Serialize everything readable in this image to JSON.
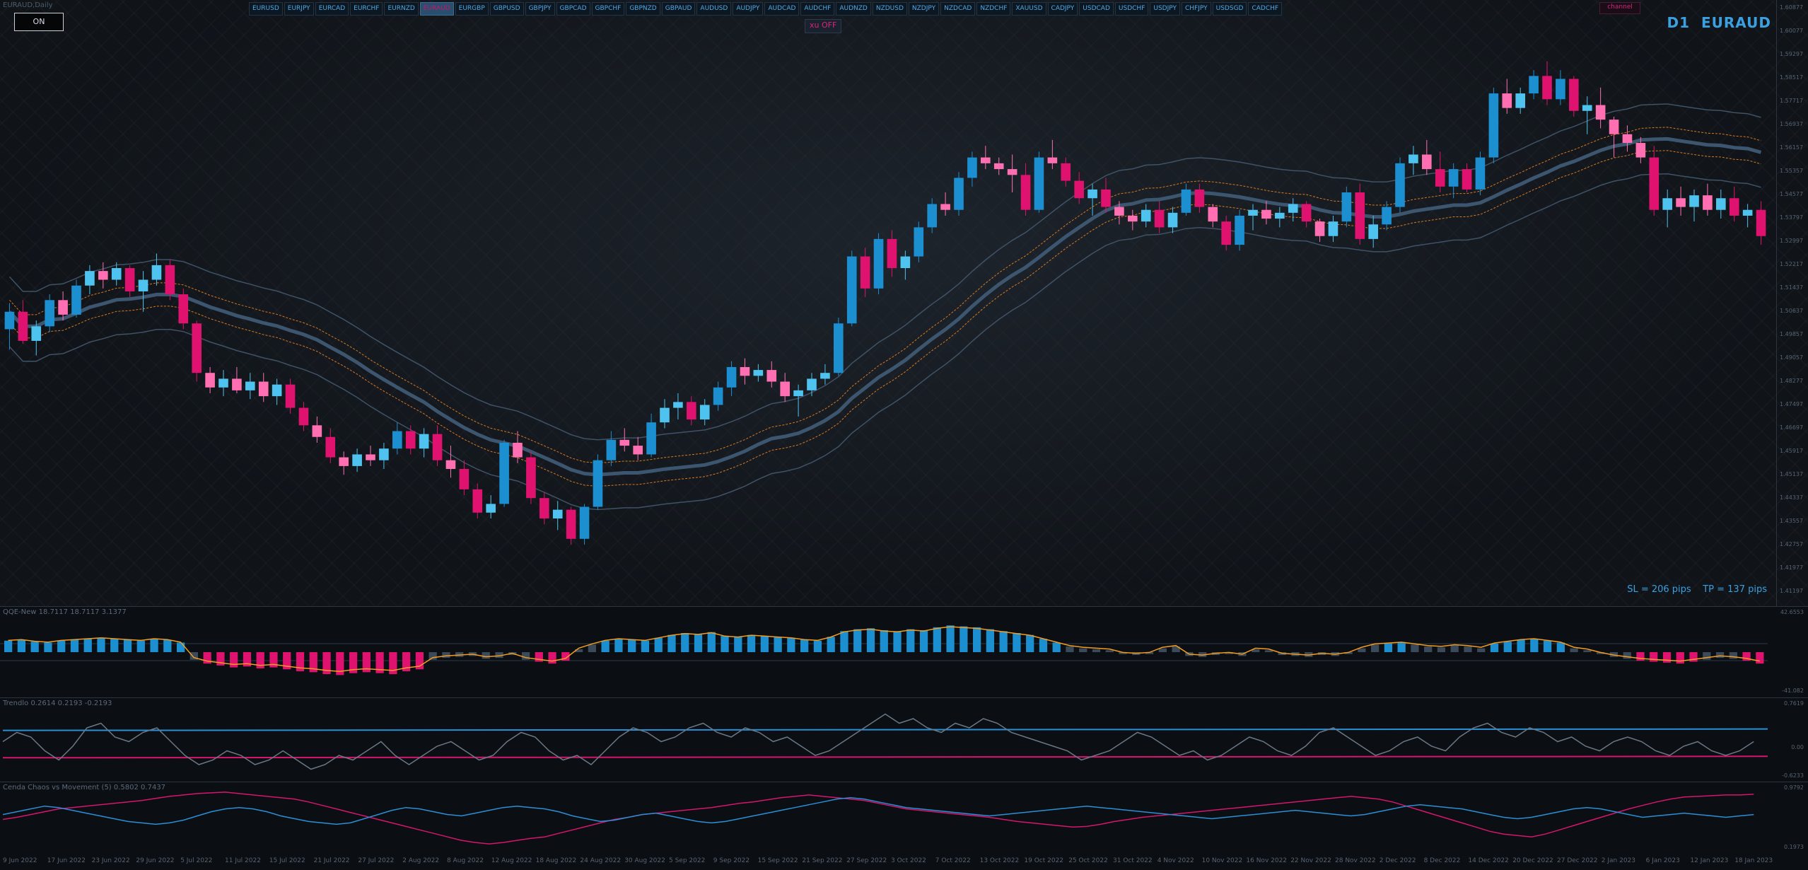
{
  "window": {
    "title": "EURAUD,Daily",
    "timeframe": "D1",
    "symbol": "EURAUD"
  },
  "controls": {
    "on_button": "ON",
    "xu_button": "xu OFF",
    "channel_button": "channel"
  },
  "symbols": [
    "EURUSD",
    "EURJPY",
    "EURCAD",
    "EURCHF",
    "EURNZD",
    "EURAUD",
    "EURGBP",
    "GBPUSD",
    "GBPJPY",
    "GBPCAD",
    "GBPCHF",
    "GBPNZD",
    "GBPAUD",
    "AUDUSD",
    "AUDJPY",
    "AUDCAD",
    "AUDCHF",
    "AUDNZD",
    "NZDUSD",
    "NZDJPY",
    "NZDCAD",
    "NZDCHF",
    "XAUUSD",
    "CADJPY",
    "USDCAD",
    "USDCHF",
    "USDJPY",
    "CHFJPY",
    "USDSGD",
    "CADCHF"
  ],
  "active_symbol": "EURAUD",
  "sl_tp": "SL = 206 pips    TP = 137 pips",
  "price_axis": [
    "1.60877",
    "1.60077",
    "1.59297",
    "1.58517",
    "1.57717",
    "1.56937",
    "1.56157",
    "1.55357",
    "1.54577",
    "1.53797",
    "1.52997",
    "1.52217",
    "1.51437",
    "1.50637",
    "1.49857",
    "1.49057",
    "1.48277",
    "1.47497",
    "1.46697",
    "1.45917",
    "1.45137",
    "1.44337",
    "1.43557",
    "1.42757",
    "1.41977",
    "1.41197"
  ],
  "indicators": {
    "qqe": {
      "title": "QQE-New 18.7117 18.7117 3.1377",
      "max": "42.6553",
      "min": "-41.082"
    },
    "trendlo": {
      "title": "Trendlo 0.2614 0.2193 -0.2193",
      "max": "0.7619",
      "mid": "0.00",
      "min": "-0.6233"
    },
    "chaos": {
      "title": "Cenda Chaos vs Movement (5) 0.5802 0.7437",
      "max": "0.9792",
      "min": "0.1973"
    }
  },
  "dates": [
    "9 Jun 2022",
    "17 Jun 2022",
    "23 Jun 2022",
    "29 Jun 2022",
    "5 Jul 2022",
    "11 Jul 2022",
    "15 Jul 2022",
    "21 Jul 2022",
    "27 Jul 2022",
    "2 Aug 2022",
    "8 Aug 2022",
    "12 Aug 2022",
    "18 Aug 2022",
    "24 Aug 2022",
    "30 Aug 2022",
    "5 Sep 2022",
    "9 Sep 2022",
    "15 Sep 2022",
    "21 Sep 2022",
    "27 Sep 2022",
    "3 Oct 2022",
    "7 Oct 2022",
    "13 Oct 2022",
    "19 Oct 2022",
    "25 Oct 2022",
    "31 Oct 2022",
    "4 Nov 2022",
    "10 Nov 2022",
    "16 Nov 2022",
    "22 Nov 2022",
    "28 Nov 2022",
    "2 Dec 2022",
    "8 Dec 2022",
    "14 Dec 2022",
    "20 Dec 2022",
    "27 Dec 2022",
    "2 Jan 2023",
    "6 Jan 2023",
    "12 Jan 2023",
    "18 Jan 2023"
  ],
  "colors": {
    "bull": "#4fc3ef",
    "bull_dark": "#1c8fd0",
    "bear": "#ff6fb2",
    "bear_dark": "#e0126f",
    "neutral": "#3a4a5a",
    "band_mid": "#3d5670",
    "band_outer": "#3f5266",
    "band_inner": "#d9781f",
    "dotted": "#c01a5a"
  },
  "chart_data": {
    "type": "candlestick",
    "price_range": [
      1.412,
      1.6088
    ],
    "candles": [
      [
        1.503,
        1.512,
        1.496,
        1.509
      ],
      [
        1.509,
        1.513,
        1.498,
        1.499
      ],
      [
        1.499,
        1.506,
        1.494,
        1.504
      ],
      [
        1.504,
        1.515,
        1.502,
        1.513
      ],
      [
        1.513,
        1.516,
        1.506,
        1.508
      ],
      [
        1.508,
        1.52,
        1.507,
        1.518
      ],
      [
        1.518,
        1.525,
        1.515,
        1.523
      ],
      [
        1.523,
        1.526,
        1.517,
        1.52
      ],
      [
        1.52,
        1.526,
        1.518,
        1.524
      ],
      [
        1.524,
        1.525,
        1.514,
        1.516
      ],
      [
        1.516,
        1.523,
        1.509,
        1.52
      ],
      [
        1.52,
        1.529,
        1.518,
        1.525
      ],
      [
        1.525,
        1.527,
        1.513,
        1.515
      ],
      [
        1.515,
        1.517,
        1.503,
        1.505
      ],
      [
        1.505,
        1.506,
        1.485,
        1.488
      ],
      [
        1.488,
        1.49,
        1.481,
        1.483
      ],
      [
        1.483,
        1.489,
        1.48,
        1.486
      ],
      [
        1.486,
        1.49,
        1.481,
        1.482
      ],
      [
        1.482,
        1.488,
        1.479,
        1.485
      ],
      [
        1.485,
        1.488,
        1.478,
        1.48
      ],
      [
        1.48,
        1.486,
        1.477,
        1.484
      ],
      [
        1.484,
        1.486,
        1.474,
        1.476
      ],
      [
        1.476,
        1.478,
        1.468,
        1.47
      ],
      [
        1.47,
        1.473,
        1.464,
        1.466
      ],
      [
        1.466,
        1.469,
        1.457,
        1.459
      ],
      [
        1.459,
        1.461,
        1.453,
        1.456
      ],
      [
        1.456,
        1.462,
        1.454,
        1.46
      ],
      [
        1.46,
        1.463,
        1.456,
        1.458
      ],
      [
        1.458,
        1.464,
        1.455,
        1.462
      ],
      [
        1.462,
        1.471,
        1.46,
        1.468
      ],
      [
        1.468,
        1.47,
        1.46,
        1.462
      ],
      [
        1.462,
        1.469,
        1.459,
        1.467
      ],
      [
        1.467,
        1.47,
        1.456,
        1.458
      ],
      [
        1.458,
        1.463,
        1.452,
        1.455
      ],
      [
        1.455,
        1.458,
        1.446,
        1.448
      ],
      [
        1.448,
        1.45,
        1.438,
        1.44
      ],
      [
        1.44,
        1.446,
        1.438,
        1.443
      ],
      [
        1.443,
        1.465,
        1.442,
        1.464
      ],
      [
        1.464,
        1.468,
        1.457,
        1.459
      ],
      [
        1.459,
        1.461,
        1.443,
        1.445
      ],
      [
        1.445,
        1.447,
        1.436,
        1.438
      ],
      [
        1.438,
        1.444,
        1.434,
        1.441
      ],
      [
        1.441,
        1.442,
        1.429,
        1.431
      ],
      [
        1.431,
        1.443,
        1.429,
        1.442
      ],
      [
        1.442,
        1.46,
        1.441,
        1.458
      ],
      [
        1.458,
        1.468,
        1.456,
        1.465
      ],
      [
        1.465,
        1.469,
        1.461,
        1.463
      ],
      [
        1.463,
        1.466,
        1.458,
        1.46
      ],
      [
        1.46,
        1.474,
        1.459,
        1.471
      ],
      [
        1.471,
        1.479,
        1.469,
        1.476
      ],
      [
        1.476,
        1.481,
        1.472,
        1.478
      ],
      [
        1.478,
        1.48,
        1.47,
        1.472
      ],
      [
        1.472,
        1.479,
        1.47,
        1.477
      ],
      [
        1.477,
        1.485,
        1.475,
        1.483
      ],
      [
        1.483,
        1.492,
        1.48,
        1.49
      ],
      [
        1.49,
        1.493,
        1.484,
        1.487
      ],
      [
        1.487,
        1.491,
        1.485,
        1.489
      ],
      [
        1.489,
        1.492,
        1.483,
        1.485
      ],
      [
        1.485,
        1.488,
        1.478,
        1.48
      ],
      [
        1.48,
        1.484,
        1.473,
        1.482
      ],
      [
        1.482,
        1.488,
        1.48,
        1.486
      ],
      [
        1.486,
        1.491,
        1.484,
        1.488
      ],
      [
        1.488,
        1.507,
        1.487,
        1.505
      ],
      [
        1.505,
        1.53,
        1.504,
        1.528
      ],
      [
        1.528,
        1.531,
        1.514,
        1.517
      ],
      [
        1.517,
        1.536,
        1.515,
        1.534
      ],
      [
        1.534,
        1.537,
        1.521,
        1.524
      ],
      [
        1.524,
        1.53,
        1.52,
        1.528
      ],
      [
        1.528,
        1.54,
        1.526,
        1.538
      ],
      [
        1.538,
        1.548,
        1.536,
        1.546
      ],
      [
        1.546,
        1.55,
        1.542,
        1.544
      ],
      [
        1.544,
        1.557,
        1.542,
        1.555
      ],
      [
        1.555,
        1.564,
        1.552,
        1.562
      ],
      [
        1.562,
        1.566,
        1.558,
        1.56
      ],
      [
        1.56,
        1.562,
        1.556,
        1.558
      ],
      [
        1.558,
        1.563,
        1.55,
        1.556
      ],
      [
        1.556,
        1.56,
        1.542,
        1.544
      ],
      [
        1.544,
        1.564,
        1.543,
        1.562
      ],
      [
        1.562,
        1.568,
        1.558,
        1.56
      ],
      [
        1.56,
        1.562,
        1.552,
        1.554
      ],
      [
        1.554,
        1.557,
        1.546,
        1.548
      ],
      [
        1.548,
        1.553,
        1.542,
        1.551
      ],
      [
        1.551,
        1.555,
        1.543,
        1.545
      ],
      [
        1.545,
        1.547,
        1.539,
        1.542
      ],
      [
        1.542,
        1.544,
        1.537,
        1.54
      ],
      [
        1.54,
        1.546,
        1.538,
        1.544
      ],
      [
        1.544,
        1.547,
        1.536,
        1.538
      ],
      [
        1.538,
        1.545,
        1.536,
        1.543
      ],
      [
        1.543,
        1.553,
        1.542,
        1.551
      ],
      [
        1.551,
        1.553,
        1.543,
        1.545
      ],
      [
        1.545,
        1.546,
        1.538,
        1.54
      ],
      [
        1.54,
        1.542,
        1.53,
        1.532
      ],
      [
        1.532,
        1.544,
        1.53,
        1.542
      ],
      [
        1.542,
        1.546,
        1.537,
        1.544
      ],
      [
        1.544,
        1.547,
        1.539,
        1.541
      ],
      [
        1.541,
        1.545,
        1.538,
        1.543
      ],
      [
        1.543,
        1.548,
        1.54,
        1.546
      ],
      [
        1.546,
        1.547,
        1.538,
        1.54
      ],
      [
        1.54,
        1.541,
        1.533,
        1.535
      ],
      [
        1.535,
        1.542,
        1.533,
        1.54
      ],
      [
        1.54,
        1.552,
        1.538,
        1.55
      ],
      [
        1.55,
        1.553,
        1.532,
        1.534
      ],
      [
        1.534,
        1.542,
        1.531,
        1.539
      ],
      [
        1.539,
        1.547,
        1.537,
        1.545
      ],
      [
        1.545,
        1.562,
        1.543,
        1.56
      ],
      [
        1.56,
        1.566,
        1.556,
        1.563
      ],
      [
        1.563,
        1.568,
        1.556,
        1.558
      ],
      [
        1.558,
        1.564,
        1.55,
        1.552
      ],
      [
        1.552,
        1.56,
        1.548,
        1.558
      ],
      [
        1.558,
        1.56,
        1.55,
        1.551
      ],
      [
        1.551,
        1.564,
        1.549,
        1.562
      ],
      [
        1.562,
        1.586,
        1.56,
        1.584
      ],
      [
        1.584,
        1.589,
        1.577,
        1.579
      ],
      [
        1.579,
        1.586,
        1.577,
        1.584
      ],
      [
        1.584,
        1.592,
        1.582,
        1.59
      ],
      [
        1.59,
        1.595,
        1.58,
        1.582
      ],
      [
        1.582,
        1.592,
        1.58,
        1.589
      ],
      [
        1.589,
        1.59,
        1.576,
        1.578
      ],
      [
        1.578,
        1.583,
        1.57,
        1.58
      ],
      [
        1.58,
        1.586,
        1.572,
        1.575
      ],
      [
        1.575,
        1.576,
        1.562,
        1.57
      ],
      [
        1.57,
        1.573,
        1.564,
        1.567
      ],
      [
        1.567,
        1.569,
        1.56,
        1.562
      ],
      [
        1.562,
        1.566,
        1.542,
        1.544
      ],
      [
        1.544,
        1.551,
        1.538,
        1.548
      ],
      [
        1.548,
        1.552,
        1.542,
        1.545
      ],
      [
        1.545,
        1.551,
        1.54,
        1.549
      ],
      [
        1.549,
        1.553,
        1.542,
        1.544
      ],
      [
        1.544,
        1.551,
        1.541,
        1.548
      ],
      [
        1.548,
        1.552,
        1.54,
        1.542
      ],
      [
        1.542,
        1.546,
        1.538,
        1.544
      ],
      [
        1.544,
        1.547,
        1.532,
        1.535
      ]
    ],
    "qqe": [
      12,
      13,
      11,
      10,
      12,
      13,
      14,
      15,
      14,
      13,
      12,
      14,
      13,
      10,
      -8,
      -12,
      -14,
      -16,
      -15,
      -17,
      -16,
      -18,
      -20,
      -21,
      -23,
      -24,
      -22,
      -21,
      -22,
      -23,
      -20,
      -18,
      -8,
      -6,
      -5,
      -4,
      -7,
      -6,
      -3,
      -8,
      -10,
      -12,
      -9,
      3,
      8,
      12,
      14,
      13,
      12,
      15,
      18,
      20,
      19,
      21,
      17,
      16,
      18,
      17,
      16,
      15,
      13,
      12,
      16,
      22,
      24,
      25,
      23,
      22,
      24,
      23,
      26,
      28,
      27,
      26,
      24,
      22,
      20,
      18,
      14,
      10,
      6,
      4,
      3,
      2,
      -2,
      -3,
      -2,
      4,
      6,
      -4,
      -5,
      -3,
      -2,
      -4,
      3,
      2,
      -3,
      -4,
      -5,
      -3,
      -4,
      -2,
      4,
      8,
      9,
      10,
      8,
      6,
      5,
      7,
      6,
      4,
      9,
      11,
      13,
      14,
      12,
      10,
      4,
      2,
      -2,
      -5,
      -7,
      -9,
      -10,
      -11,
      -12,
      -10,
      -8,
      -6,
      -7,
      -9,
      -12
    ],
    "trendlo": [
      0.1,
      0.3,
      0.2,
      -0.1,
      -0.3,
      0.0,
      0.4,
      0.5,
      0.2,
      0.1,
      0.3,
      0.4,
      0.1,
      -0.2,
      -0.4,
      -0.3,
      -0.1,
      -0.2,
      -0.4,
      -0.3,
      -0.1,
      -0.3,
      -0.5,
      -0.4,
      -0.2,
      -0.3,
      -0.1,
      0.1,
      -0.2,
      -0.4,
      -0.2,
      0.0,
      0.1,
      -0.1,
      -0.3,
      -0.2,
      0.1,
      0.3,
      0.2,
      -0.1,
      -0.3,
      -0.2,
      -0.4,
      -0.1,
      0.2,
      0.4,
      0.3,
      0.1,
      0.2,
      0.4,
      0.5,
      0.3,
      0.2,
      0.4,
      0.3,
      0.1,
      0.2,
      0.0,
      -0.2,
      -0.1,
      0.1,
      0.3,
      0.5,
      0.7,
      0.5,
      0.6,
      0.4,
      0.3,
      0.5,
      0.4,
      0.6,
      0.5,
      0.3,
      0.2,
      0.1,
      0.0,
      -0.1,
      -0.3,
      -0.2,
      -0.1,
      0.1,
      0.3,
      0.2,
      0.0,
      -0.2,
      -0.1,
      -0.3,
      -0.2,
      0.0,
      0.2,
      0.1,
      -0.1,
      -0.2,
      0.0,
      0.3,
      0.4,
      0.2,
      0.0,
      -0.2,
      -0.1,
      0.1,
      0.2,
      0.0,
      -0.1,
      0.2,
      0.4,
      0.5,
      0.3,
      0.2,
      0.4,
      0.3,
      0.1,
      0.2,
      0.0,
      -0.1,
      0.1,
      0.2,
      0.1,
      -0.1,
      -0.2,
      0.0,
      0.1,
      -0.1,
      -0.2,
      -0.1,
      0.1
    ],
    "trendlo_upper": 0.19,
    "trendlo_lower": -0.22,
    "chaos_a": [
      0.55,
      0.58,
      0.62,
      0.66,
      0.7,
      0.72,
      0.74,
      0.76,
      0.78,
      0.8,
      0.82,
      0.85,
      0.88,
      0.9,
      0.92,
      0.93,
      0.94,
      0.92,
      0.9,
      0.88,
      0.86,
      0.84,
      0.8,
      0.75,
      0.7,
      0.65,
      0.6,
      0.55,
      0.5,
      0.45,
      0.4,
      0.35,
      0.3,
      0.25,
      0.22,
      0.2,
      0.22,
      0.25,
      0.28,
      0.3,
      0.35,
      0.4,
      0.45,
      0.5,
      0.55,
      0.58,
      0.62,
      0.64,
      0.66,
      0.68,
      0.7,
      0.72,
      0.75,
      0.78,
      0.8,
      0.83,
      0.86,
      0.88,
      0.9,
      0.88,
      0.86,
      0.84,
      0.82,
      0.78,
      0.74,
      0.7,
      0.68,
      0.66,
      0.64,
      0.62,
      0.6,
      0.58,
      0.55,
      0.52,
      0.5,
      0.48,
      0.46,
      0.44,
      0.45,
      0.48,
      0.52,
      0.55,
      0.58,
      0.6,
      0.62,
      0.64,
      0.66,
      0.68,
      0.7,
      0.72,
      0.74,
      0.76,
      0.78,
      0.8,
      0.82,
      0.84,
      0.86,
      0.88,
      0.86,
      0.84,
      0.8,
      0.74,
      0.68,
      0.62,
      0.56,
      0.5,
      0.44,
      0.38,
      0.34,
      0.32,
      0.3,
      0.34,
      0.4,
      0.46,
      0.52,
      0.58,
      0.64,
      0.7,
      0.75,
      0.8,
      0.84,
      0.87,
      0.88,
      0.89,
      0.9,
      0.9,
      0.91
    ],
    "chaos_b": [
      0.62,
      0.66,
      0.7,
      0.74,
      0.72,
      0.68,
      0.64,
      0.6,
      0.56,
      0.52,
      0.5,
      0.48,
      0.5,
      0.54,
      0.6,
      0.66,
      0.7,
      0.72,
      0.7,
      0.66,
      0.6,
      0.56,
      0.52,
      0.5,
      0.48,
      0.5,
      0.56,
      0.62,
      0.68,
      0.72,
      0.7,
      0.66,
      0.62,
      0.6,
      0.64,
      0.68,
      0.72,
      0.74,
      0.72,
      0.7,
      0.66,
      0.6,
      0.56,
      0.52,
      0.54,
      0.58,
      0.62,
      0.64,
      0.6,
      0.56,
      0.52,
      0.5,
      0.52,
      0.56,
      0.6,
      0.64,
      0.68,
      0.72,
      0.76,
      0.8,
      0.84,
      0.86,
      0.84,
      0.8,
      0.76,
      0.72,
      0.7,
      0.68,
      0.66,
      0.64,
      0.62,
      0.6,
      0.62,
      0.64,
      0.66,
      0.68,
      0.7,
      0.72,
      0.74,
      0.72,
      0.7,
      0.68,
      0.66,
      0.64,
      0.62,
      0.6,
      0.58,
      0.56,
      0.58,
      0.6,
      0.62,
      0.64,
      0.66,
      0.68,
      0.66,
      0.64,
      0.62,
      0.6,
      0.62,
      0.66,
      0.7,
      0.74,
      0.76,
      0.74,
      0.72,
      0.7,
      0.66,
      0.62,
      0.58,
      0.56,
      0.58,
      0.62,
      0.66,
      0.7,
      0.72,
      0.7,
      0.66,
      0.62,
      0.58,
      0.6,
      0.62,
      0.64,
      0.62,
      0.6,
      0.58,
      0.6,
      0.62
    ]
  }
}
